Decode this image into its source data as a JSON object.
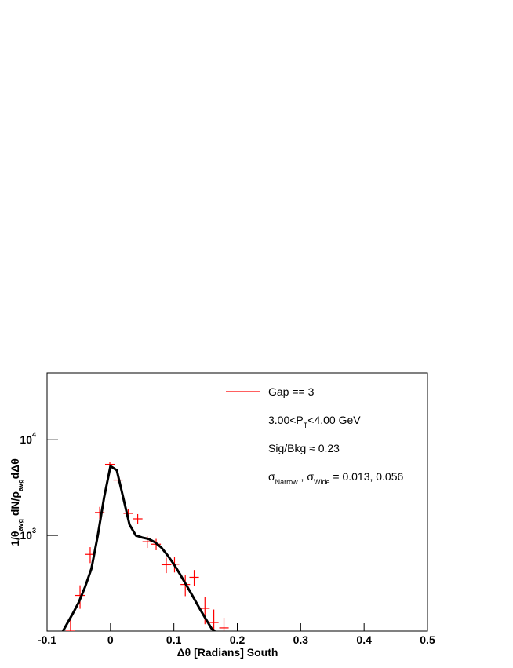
{
  "chart_data": {
    "type": "errorbar",
    "xlabel": [
      {
        "text": "Δθ [Radians] South"
      }
    ],
    "ylabel": [
      {
        "text": "1/θ"
      },
      {
        "text": "avg",
        "sub": true
      },
      {
        "text": " dN/ρ"
      },
      {
        "text": "avg",
        "sub": true
      },
      {
        "text": "dΔθ"
      }
    ],
    "xlim": [
      -0.1,
      0.5
    ],
    "xticks": [
      -0.1,
      0,
      0.1,
      0.2,
      0.3,
      0.4,
      0.5
    ],
    "ylim": [
      100,
      50000
    ],
    "log_y": true,
    "yticks": [
      {
        "value": 1000,
        "label": "10",
        "exponent": "3"
      },
      {
        "value": 10000,
        "label": "10",
        "exponent": "4"
      }
    ],
    "legend_loc": "upper right",
    "series": [
      {
        "name": "Gap == 3",
        "color": "#ff0000",
        "style": "points",
        "xerr": 0.0075,
        "x": [
          -0.063,
          -0.048,
          -0.032,
          -0.017,
          -0.001,
          0.012,
          0.028,
          0.043,
          0.058,
          0.072,
          0.088,
          0.101,
          0.118,
          0.132,
          0.149,
          0.163,
          0.179
        ],
        "values": [
          100,
          236,
          634,
          1737,
          5530,
          3790,
          1700,
          1490,
          860,
          810,
          494,
          500,
          307,
          365,
          173,
          123,
          108
        ],
        "yerr": [
          30,
          65,
          120,
          250,
          300,
          250,
          200,
          180,
          120,
          110,
          90,
          90,
          75,
          70,
          55,
          45,
          30
        ]
      },
      {
        "color": "#000000",
        "style": "line",
        "x": [
          -0.075,
          -0.06,
          -0.05,
          -0.04,
          -0.03,
          -0.02,
          -0.01,
          0,
          0.01,
          0.02,
          0.03,
          0.04,
          0.05,
          0.06,
          0.07,
          0.08,
          0.09,
          0.1,
          0.11,
          0.12,
          0.13,
          0.14,
          0.15,
          0.16,
          0.165
        ],
        "values": [
          100,
          150,
          200,
          290,
          450,
          1000,
          2500,
          5300,
          4800,
          2500,
          1300,
          1000,
          950,
          920,
          850,
          750,
          620,
          500,
          390,
          300,
          230,
          175,
          135,
          105,
          100
        ]
      }
    ],
    "annotations": [
      [
        {
          "text": "3.00<P"
        },
        {
          "text": "T",
          "sub": true
        },
        {
          "text": "<4.00 GeV"
        }
      ],
      [
        {
          "text": "Sig/Bkg ≈ 0.23"
        }
      ],
      [
        {
          "text": "σ"
        },
        {
          "text": "Narrow",
          "sub": true
        },
        {
          "text": " , σ"
        },
        {
          "text": "Wide",
          "sub": true
        },
        {
          "text": " = 0.013, 0.056"
        }
      ]
    ]
  }
}
